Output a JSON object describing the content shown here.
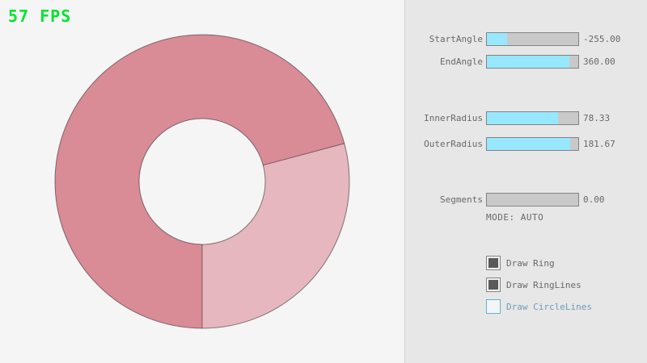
{
  "fps": {
    "text": "57 FPS"
  },
  "colors": {
    "background": "#f5f5f5",
    "panel_background": "#e7e7e7",
    "divider": "#d2d2d2",
    "fps_green": "#00e430",
    "label_text": "#686868",
    "slider_border": "#838383",
    "slider_track": "#c9c9c9",
    "slider_fill": "#97e8ff",
    "checkbox_check": "#5a5a5a",
    "focused_border": "#5bb2d9",
    "focused_text": "#6c9bbc",
    "ring_dark": "#d98b96",
    "ring_light": "#e6b7be",
    "ring_line": "rgba(0,0,0,0.45)"
  },
  "ring": {
    "dark_color": "#d98b96",
    "light_color": "#e6b7be",
    "line_color": "rgba(0,0,0,0.45)"
  },
  "panel": {
    "sliders": [
      {
        "label": "StartAngle",
        "value": "-255.00",
        "fill_pct": 21.7
      },
      {
        "label": "EndAngle",
        "value": "360.00",
        "fill_pct": 90.0
      },
      {
        "label": "InnerRadius",
        "value": "78.33",
        "fill_pct": 78.3
      },
      {
        "label": "OuterRadius",
        "value": "181.67",
        "fill_pct": 90.8
      },
      {
        "label": "Segments",
        "value": "0.00",
        "fill_pct": 0
      }
    ],
    "mode_text": "MODE: AUTO",
    "checkboxes": [
      {
        "label": "Draw Ring",
        "checked": true
      },
      {
        "label": "Draw RingLines",
        "checked": true
      },
      {
        "label": "Draw CircleLines",
        "checked": false
      }
    ]
  }
}
